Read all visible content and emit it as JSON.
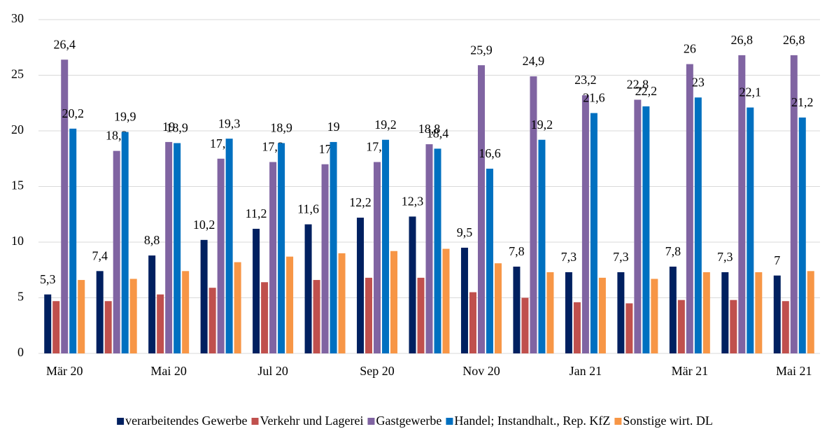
{
  "chart_data": {
    "type": "bar",
    "categories": [
      "Mär 20",
      null,
      "Mai 20",
      null,
      "Jul 20",
      null,
      "Sep 20",
      null,
      "Nov 20",
      null,
      "Jan 21",
      null,
      "Mär 21",
      null,
      "Mai 21"
    ],
    "series": [
      {
        "name": "verarbeitendes Gewerbe",
        "color": "#002060",
        "values": [
          5.3,
          7.4,
          8.8,
          10.2,
          11.2,
          11.6,
          12.2,
          12.3,
          9.5,
          7.8,
          7.3,
          7.3,
          7.8,
          7.3,
          7
        ],
        "value_labels": [
          "5,3",
          "7,4",
          "8,8",
          "10,2",
          "11,2",
          "11,6",
          "12,2",
          "12,3",
          "9,5",
          "7,8",
          "7,3",
          "7,3",
          "7,8",
          "7,3",
          "7"
        ]
      },
      {
        "name": "Verkehr und Lagerei",
        "color": "#c0504d",
        "values": [
          4.7,
          4.7,
          5.3,
          5.9,
          6.4,
          6.6,
          6.8,
          6.8,
          5.5,
          5.0,
          4.6,
          4.5,
          4.8,
          4.8,
          4.7
        ]
      },
      {
        "name": "Gastgewerbe",
        "color": "#8064a2",
        "values": [
          26.4,
          18.2,
          19,
          17.5,
          17.2,
          17,
          17.2,
          18.8,
          25.9,
          24.9,
          23.2,
          22.8,
          26,
          26.8,
          26.8
        ],
        "value_labels": [
          "26,4",
          "18,2",
          "19",
          "17,5",
          "17,2",
          "17",
          "17,2",
          "18,8",
          "25,9",
          "24,9",
          "23,2",
          "22,8",
          "26",
          "26,8",
          "26,8"
        ]
      },
      {
        "name": "Handel; Instandhalt., Rep. KfZ",
        "color": "#0070c0",
        "values": [
          20.2,
          19.9,
          18.9,
          19.3,
          18.9,
          19,
          19.2,
          18.4,
          16.6,
          19.2,
          21.6,
          22.2,
          23,
          22.1,
          21.2
        ],
        "value_labels": [
          "20,2",
          "19,9",
          "18,9",
          "19,3",
          "18,9",
          "19",
          "19,2",
          "18,4",
          "16,6",
          "19,2",
          "21,6",
          "22,2",
          "23",
          "22,1",
          "21,2"
        ]
      },
      {
        "name": "Sonstige wirt. DL",
        "color": "#f79646",
        "values": [
          6.6,
          6.7,
          7.4,
          8.2,
          8.7,
          9.0,
          9.2,
          9.4,
          8.1,
          7.3,
          6.8,
          6.7,
          7.3,
          7.3,
          7.4
        ]
      }
    ],
    "ylim": [
      0,
      30
    ],
    "yticks": [
      0,
      5,
      10,
      15,
      20,
      25,
      30
    ],
    "grid": true,
    "legend": "bottom"
  }
}
